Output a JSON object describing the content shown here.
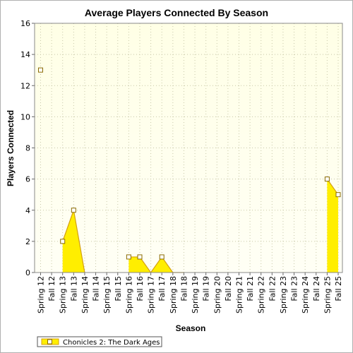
{
  "chart_data": {
    "type": "area",
    "title": "Average Players Connected By Season",
    "xlabel": "Season",
    "ylabel": "Players Connected",
    "ylim": [
      0,
      16
    ],
    "yticks": [
      0,
      2,
      4,
      6,
      8,
      10,
      12,
      14,
      16
    ],
    "grid": true,
    "legend_position": "bottom-left",
    "categories": [
      "Spring 12",
      "Fall 12",
      "Spring 13",
      "Fall 13",
      "Spring 14",
      "Fall 14",
      "Spring 15",
      "Fall 15",
      "Spring 16",
      "Fall 16",
      "Spring 17",
      "Fall 17",
      "Spring 18",
      "Fall 18",
      "Spring 19",
      "Fall 19",
      "Spring 20",
      "Fall 20",
      "Spring 21",
      "Fall 21",
      "Spring 22",
      "Fall 22",
      "Spring 23",
      "Fall 23",
      "Spring 24",
      "Fall 24",
      "Spring 25",
      "Fall 25"
    ],
    "series": [
      {
        "name": "Chonicles 2: The Dark Ages",
        "values": [
          13,
          null,
          2,
          4,
          0,
          null,
          null,
          null,
          1,
          1,
          0,
          1,
          0,
          0,
          null,
          null,
          null,
          null,
          null,
          null,
          null,
          null,
          null,
          null,
          null,
          null,
          6,
          5
        ],
        "fill_color": "#ffee00",
        "line_color": "#d4a010"
      }
    ]
  }
}
